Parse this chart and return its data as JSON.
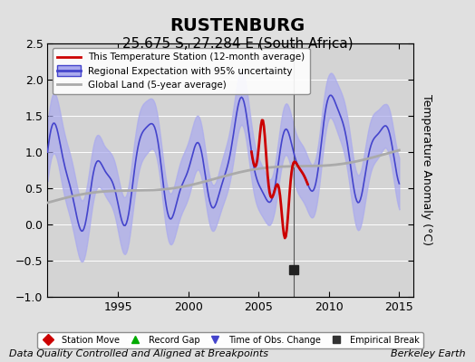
{
  "title": "RUSTENBURG",
  "subtitle": "25.675 S, 27.284 E (South Africa)",
  "ylabel": "Temperature Anomaly (°C)",
  "xlabel_left": "Data Quality Controlled and Aligned at Breakpoints",
  "xlabel_right": "Berkeley Earth",
  "xlim": [
    1990.0,
    2016.0
  ],
  "ylim": [
    -1.0,
    2.5
  ],
  "yticks": [
    -1,
    -0.5,
    0,
    0.5,
    1,
    1.5,
    2,
    2.5
  ],
  "xticks": [
    1995,
    2000,
    2005,
    2010,
    2015
  ],
  "background_color": "#e8e8e8",
  "plot_bg_color": "#d8d8d8",
  "regional_color": "#4444cc",
  "regional_fill_color": "#aaaaee",
  "station_color": "#cc0000",
  "global_color": "#aaaaaa",
  "empirical_break_year": 2007.5,
  "empirical_break_y": -0.62,
  "legend1_entries": [
    {
      "label": "This Temperature Station (12-month average)",
      "color": "#cc0000",
      "lw": 2
    },
    {
      "label": "Regional Expectation with 95% uncertainty",
      "color": "#4444cc",
      "lw": 2
    },
    {
      "label": "Global Land (5-year average)",
      "color": "#aaaaaa",
      "lw": 2
    }
  ],
  "legend2_entries": [
    {
      "label": "Station Move",
      "marker": "D",
      "color": "#cc0000"
    },
    {
      "label": "Record Gap",
      "marker": "^",
      "color": "#00aa00"
    },
    {
      "label": "Time of Obs. Change",
      "marker": "v",
      "color": "#4444cc"
    },
    {
      "label": "Empirical Break",
      "marker": "s",
      "color": "#333333"
    }
  ],
  "title_fontsize": 14,
  "subtitle_fontsize": 11,
  "axis_fontsize": 9,
  "tick_fontsize": 9,
  "footnote_fontsize": 8
}
